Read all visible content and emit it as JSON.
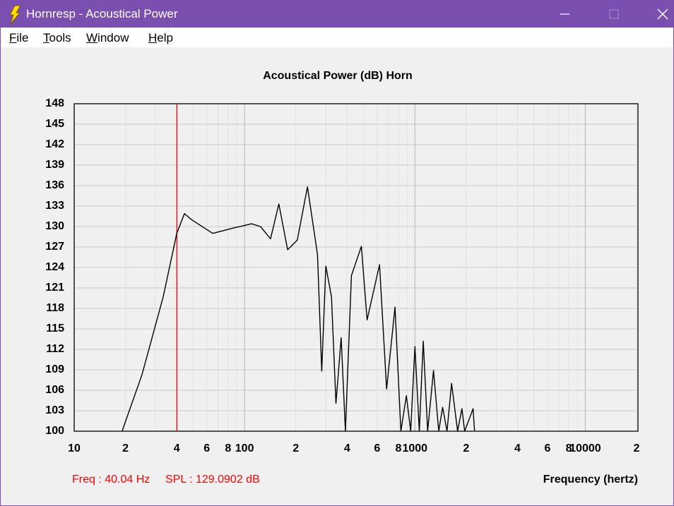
{
  "window": {
    "title": "Hornresp - Acoustical Power"
  },
  "menu": [
    "File",
    "Tools",
    "Window",
    "Help"
  ],
  "chart_data": {
    "type": "line",
    "title": "Acoustical Power (dB)   Horn",
    "x_label": "Frequency (hertz)",
    "x_scale": "log",
    "grid": true,
    "x": [
      19.1,
      25,
      33.3,
      40,
      44.4,
      48.9,
      65,
      86.7,
      110,
      124,
      142,
      159,
      179,
      204,
      234,
      268,
      284,
      300,
      324,
      344,
      369,
      391,
      424,
      485,
      524,
      620,
      682,
      764,
      827,
      891,
      945,
      1000,
      1061,
      1120,
      1188,
      1286,
      1380,
      1455,
      1543,
      1642,
      1781,
      1887,
      1960,
      2195,
      2240
    ],
    "series": [
      {
        "name": "Horn",
        "color": "#000000",
        "values": [
          100,
          108.3,
          119.7,
          129,
          131.9,
          131,
          129,
          129.8,
          130.4,
          130,
          128.2,
          133.3,
          126.6,
          128,
          135.8,
          125.9,
          108.8,
          124.2,
          119.7,
          104.1,
          113.7,
          100,
          122.8,
          127.1,
          116.3,
          124.4,
          106.2,
          118.2,
          100,
          105.2,
          100,
          112.4,
          100,
          113.2,
          100,
          108.9,
          100,
          103.5,
          100,
          107,
          100,
          103.3,
          100,
          103.3,
          100
        ]
      }
    ],
    "xlim": [
      10,
      20000
    ],
    "xticks": [
      10,
      {
        "value": 20,
        "label": "2"
      },
      {
        "value": 40,
        "label": "4"
      },
      {
        "value": 60,
        "label": "6"
      },
      {
        "value": 80,
        "label": "8"
      },
      100,
      {
        "value": 200,
        "label": "2"
      },
      {
        "value": 400,
        "label": "4"
      },
      {
        "value": 600,
        "label": "6"
      },
      {
        "value": 800,
        "label": "8"
      },
      1000,
      {
        "value": 2000,
        "label": "2"
      },
      {
        "value": 4000,
        "label": "4"
      },
      {
        "value": 6000,
        "label": "6"
      },
      {
        "value": 8000,
        "label": "8"
      },
      10000,
      {
        "value": 20000,
        "label": "2"
      }
    ],
    "xminor": [
      30,
      50,
      70,
      90,
      300,
      500,
      700,
      900,
      3000,
      5000,
      7000,
      9000
    ],
    "ylim": [
      100,
      148
    ],
    "yticks": [
      100,
      103,
      106,
      109,
      112,
      115,
      118,
      121,
      124,
      127,
      130,
      133,
      136,
      139,
      142,
      145,
      148
    ],
    "cursor": {
      "x": 40.04,
      "color": "#ff0000",
      "x_label": "Freq : 40.04 Hz",
      "y_label": "SPL : 129.0902 dB"
    }
  }
}
